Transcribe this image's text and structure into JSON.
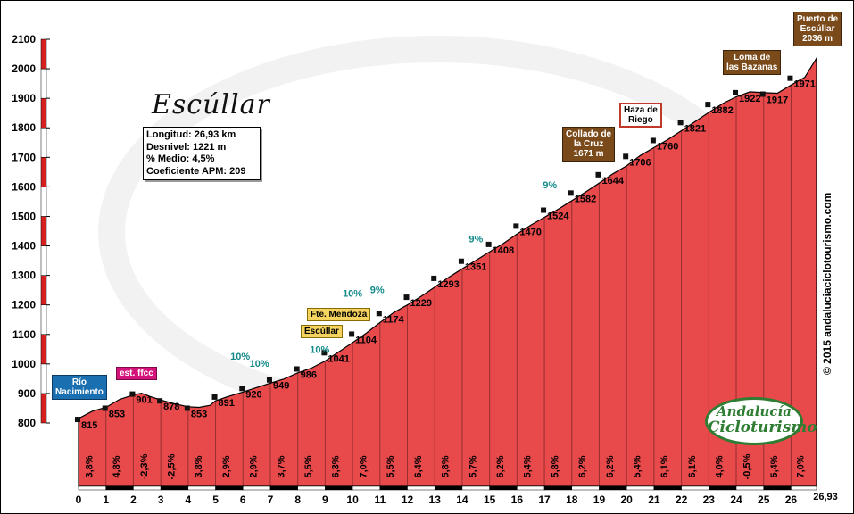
{
  "chart_data": {
    "type": "area",
    "title": "Escúllar",
    "stats": {
      "longitud": "Longitud: 26,93 km",
      "desnivel": "Desnivel: 1221 m",
      "medio": "% Medio: 4,5%",
      "coeficiente": "Coeficiente APM: 209"
    },
    "ylim": [
      800,
      2100
    ],
    "y_ticks": [
      800,
      900,
      1000,
      1100,
      1200,
      1300,
      1400,
      1500,
      1600,
      1700,
      1800,
      1900,
      2000,
      2100
    ],
    "xlim": [
      0,
      27
    ],
    "x_ticks": [
      "0",
      "1",
      "2",
      "3",
      "4",
      "5",
      "6",
      "7",
      "8",
      "9",
      "10",
      "11",
      "12",
      "13",
      "14",
      "15",
      "16",
      "17",
      "18",
      "19",
      "20",
      "21",
      "22",
      "23",
      "24",
      "25",
      "26"
    ],
    "x_end_label": "26,93",
    "profile": [
      {
        "x": 0.0,
        "y": 815
      },
      {
        "x": 0.5,
        "y": 840
      },
      {
        "x": 1.0,
        "y": 853
      },
      {
        "x": 1.5,
        "y": 880
      },
      {
        "x": 2.0,
        "y": 895
      },
      {
        "x": 2.3,
        "y": 901
      },
      {
        "x": 2.6,
        "y": 890
      },
      {
        "x": 3.0,
        "y": 878
      },
      {
        "x": 3.5,
        "y": 865
      },
      {
        "x": 4.0,
        "y": 855
      },
      {
        "x": 4.4,
        "y": 853
      },
      {
        "x": 4.8,
        "y": 860
      },
      {
        "x": 5.0,
        "y": 875
      },
      {
        "x": 5.5,
        "y": 891
      },
      {
        "x": 6.0,
        "y": 905
      },
      {
        "x": 6.5,
        "y": 920
      },
      {
        "x": 7.0,
        "y": 935
      },
      {
        "x": 7.5,
        "y": 949
      },
      {
        "x": 8.0,
        "y": 970
      },
      {
        "x": 8.5,
        "y": 986
      },
      {
        "x": 9.0,
        "y": 1010
      },
      {
        "x": 9.5,
        "y": 1041
      },
      {
        "x": 10.0,
        "y": 1072
      },
      {
        "x": 10.5,
        "y": 1104
      },
      {
        "x": 11.0,
        "y": 1140
      },
      {
        "x": 11.5,
        "y": 1174
      },
      {
        "x": 12.0,
        "y": 1200
      },
      {
        "x": 12.5,
        "y": 1229
      },
      {
        "x": 13.0,
        "y": 1260
      },
      {
        "x": 13.5,
        "y": 1293
      },
      {
        "x": 14.0,
        "y": 1322
      },
      {
        "x": 14.5,
        "y": 1351
      },
      {
        "x": 15.0,
        "y": 1380
      },
      {
        "x": 15.5,
        "y": 1408
      },
      {
        "x": 16.0,
        "y": 1440
      },
      {
        "x": 16.5,
        "y": 1470
      },
      {
        "x": 17.0,
        "y": 1497
      },
      {
        "x": 17.5,
        "y": 1524
      },
      {
        "x": 18.0,
        "y": 1553
      },
      {
        "x": 18.5,
        "y": 1582
      },
      {
        "x": 19.0,
        "y": 1613
      },
      {
        "x": 19.5,
        "y": 1644
      },
      {
        "x": 20.0,
        "y": 1671
      },
      {
        "x": 20.5,
        "y": 1706
      },
      {
        "x": 21.0,
        "y": 1733
      },
      {
        "x": 21.5,
        "y": 1760
      },
      {
        "x": 22.0,
        "y": 1790
      },
      {
        "x": 22.5,
        "y": 1821
      },
      {
        "x": 23.0,
        "y": 1852
      },
      {
        "x": 23.5,
        "y": 1882
      },
      {
        "x": 24.0,
        "y": 1905
      },
      {
        "x": 24.5,
        "y": 1922
      },
      {
        "x": 25.0,
        "y": 1919
      },
      {
        "x": 25.5,
        "y": 1917
      },
      {
        "x": 26.0,
        "y": 1945
      },
      {
        "x": 26.5,
        "y": 1971
      },
      {
        "x": 26.93,
        "y": 2036
      }
    ],
    "altitude_labels": [
      {
        "x": 0.55,
        "y": 815,
        "label": "815"
      },
      {
        "x": 1.55,
        "y": 853,
        "label": "853"
      },
      {
        "x": 2.55,
        "y": 901,
        "label": "901"
      },
      {
        "x": 3.55,
        "y": 878,
        "label": "878"
      },
      {
        "x": 4.55,
        "y": 853,
        "label": "853"
      },
      {
        "x": 5.55,
        "y": 891,
        "label": "891"
      },
      {
        "x": 6.55,
        "y": 920,
        "label": "920"
      },
      {
        "x": 7.55,
        "y": 949,
        "label": "949"
      },
      {
        "x": 8.55,
        "y": 986,
        "label": "986"
      },
      {
        "x": 9.55,
        "y": 1041,
        "label": "1041"
      },
      {
        "x": 10.55,
        "y": 1104,
        "label": "1104"
      },
      {
        "x": 11.55,
        "y": 1174,
        "label": "1174"
      },
      {
        "x": 12.55,
        "y": 1229,
        "label": "1229"
      },
      {
        "x": 13.55,
        "y": 1293,
        "label": "1293"
      },
      {
        "x": 14.55,
        "y": 1351,
        "label": "1351"
      },
      {
        "x": 15.55,
        "y": 1408,
        "label": "1408"
      },
      {
        "x": 16.55,
        "y": 1470,
        "label": "1470"
      },
      {
        "x": 17.55,
        "y": 1524,
        "label": "1524"
      },
      {
        "x": 18.55,
        "y": 1582,
        "label": "1582"
      },
      {
        "x": 19.55,
        "y": 1644,
        "label": "1644"
      },
      {
        "x": 20.55,
        "y": 1706,
        "label": "1706"
      },
      {
        "x": 21.55,
        "y": 1760,
        "label": "1760"
      },
      {
        "x": 22.55,
        "y": 1821,
        "label": "1821"
      },
      {
        "x": 23.55,
        "y": 1882,
        "label": "1882"
      },
      {
        "x": 24.55,
        "y": 1922,
        "label": "1922"
      },
      {
        "x": 25.55,
        "y": 1917,
        "label": "1917"
      },
      {
        "x": 26.55,
        "y": 1971,
        "label": "1971"
      }
    ],
    "segment_gradients": [
      "3,8%",
      "4,8%",
      "-2,3%",
      "-2,5%",
      "3,8%",
      "2,9%",
      "2,9%",
      "3,7%",
      "5,5%",
      "6,3%",
      "7,0%",
      "5,5%",
      "6,4%",
      "5,8%",
      "5,7%",
      "6,2%",
      "5,4%",
      "5,8%",
      "6,2%",
      "6,2%",
      "5,4%",
      "6,1%",
      "6,1%",
      "4,0%",
      "-0,5%",
      "5,4%",
      "7,0%"
    ],
    "ramp_labels": [
      {
        "x": 5.9,
        "y": 1015,
        "label": "10%"
      },
      {
        "x": 6.6,
        "y": 990,
        "label": "10%"
      },
      {
        "x": 8.8,
        "y": 1038,
        "label": "10%"
      },
      {
        "x": 10.0,
        "y": 1228,
        "label": "10%"
      },
      {
        "x": 10.9,
        "y": 1240,
        "label": "9%"
      },
      {
        "x": 14.5,
        "y": 1412,
        "label": "9%"
      },
      {
        "x": 17.2,
        "y": 1595,
        "label": "9%"
      }
    ]
  },
  "labels": {
    "rio_nacimiento": "Río\nNacimiento",
    "est_ffcc": "est. ffcc",
    "fte_mendoza": "Fte. Mendoza",
    "escullar": "Escúllar",
    "collado": "Collado de\nla Cruz\n1671 m",
    "haza": "Haza de\nRiego",
    "loma": "Loma de\nlas Bazanas",
    "puerto": "Puerto de\nEscúllar\n2036 m"
  },
  "credit": "© 2015 andaluciaciclotourismo.com",
  "logo": {
    "line1": "Andalucía",
    "line2": "Cicloturismo"
  },
  "colors": {
    "fill": "#e8494b",
    "stroke": "#000000",
    "axis_red": "#d62020",
    "label_green": "#138a8a"
  }
}
